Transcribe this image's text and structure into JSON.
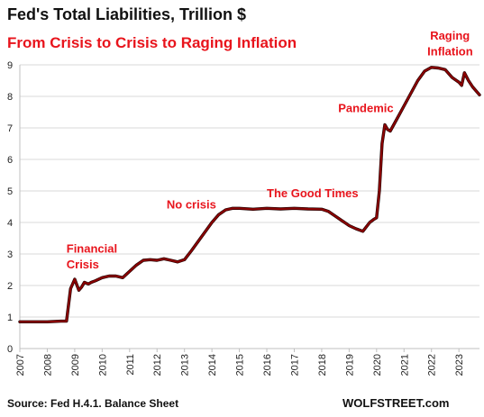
{
  "chart_data": {
    "type": "line",
    "title": "Fed's Total Liabilities, Trillion $",
    "subtitle": "From Crisis to Crisis to Raging Inflation",
    "xlabel": "",
    "ylabel": "",
    "xlim": [
      2007.0,
      2023.75
    ],
    "ylim": [
      0,
      9
    ],
    "x_ticks": [
      "2007",
      "2008",
      "2009",
      "2010",
      "2011",
      "2012",
      "2013",
      "2014",
      "2015",
      "2016",
      "2017",
      "2018",
      "2019",
      "2020",
      "2021",
      "2022",
      "2023"
    ],
    "y_ticks": [
      "0",
      "1",
      "2",
      "3",
      "4",
      "5",
      "6",
      "7",
      "8",
      "9"
    ],
    "grid": true,
    "series": [
      {
        "color": "#8b0000",
        "x": [
          2007.0,
          2007.5,
          2008.0,
          2008.5,
          2008.7,
          2008.85,
          2009.0,
          2009.15,
          2009.25,
          2009.35,
          2009.5,
          2009.6,
          2009.75,
          2010.0,
          2010.25,
          2010.5,
          2010.75,
          2011.0,
          2011.25,
          2011.5,
          2011.75,
          2012.0,
          2012.25,
          2012.5,
          2012.75,
          2013.0,
          2013.25,
          2013.5,
          2013.75,
          2014.0,
          2014.25,
          2014.5,
          2014.75,
          2015.0,
          2015.5,
          2016.0,
          2016.5,
          2017.0,
          2017.5,
          2018.0,
          2018.25,
          2018.5,
          2018.75,
          2019.0,
          2019.25,
          2019.5,
          2019.75,
          2019.9,
          2020.0,
          2020.1,
          2020.2,
          2020.3,
          2020.4,
          2020.5,
          2020.75,
          2021.0,
          2021.25,
          2021.5,
          2021.75,
          2022.0,
          2022.25,
          2022.5,
          2022.75,
          2023.0,
          2023.1,
          2023.2,
          2023.35,
          2023.5,
          2023.75
        ],
        "values": [
          0.85,
          0.85,
          0.85,
          0.87,
          0.87,
          1.9,
          2.2,
          1.85,
          1.95,
          2.1,
          2.05,
          2.1,
          2.15,
          2.25,
          2.3,
          2.3,
          2.25,
          2.45,
          2.65,
          2.8,
          2.82,
          2.8,
          2.85,
          2.8,
          2.75,
          2.82,
          3.1,
          3.4,
          3.7,
          4.0,
          4.25,
          4.4,
          4.45,
          4.45,
          4.42,
          4.45,
          4.43,
          4.45,
          4.43,
          4.42,
          4.35,
          4.2,
          4.05,
          3.9,
          3.8,
          3.72,
          4.0,
          4.1,
          4.15,
          5.0,
          6.5,
          7.1,
          6.95,
          6.9,
          7.3,
          7.7,
          8.1,
          8.5,
          8.8,
          8.92,
          8.9,
          8.85,
          8.6,
          8.45,
          8.35,
          8.75,
          8.5,
          8.3,
          8.05
        ]
      }
    ],
    "annotations": [
      {
        "text": "Financial",
        "x": 2008.7,
        "y": 3.05
      },
      {
        "text": "Crisis",
        "x": 2008.7,
        "y": 2.55
      },
      {
        "text": "No crisis",
        "x": 2012.35,
        "y": 4.45
      },
      {
        "text": "The Good Times",
        "x": 2016.0,
        "y": 4.8
      },
      {
        "text": "Pandemic",
        "x": 2018.6,
        "y": 7.5
      },
      {
        "text": "Raging",
        "x": 2021.95,
        "y": 9.8
      },
      {
        "text": "Inflation",
        "x": 2021.85,
        "y": 9.3
      }
    ]
  },
  "footer": {
    "source": "Source: Fed H.4.1. Balance Sheet",
    "brand": "WOLFSTREET.com"
  }
}
